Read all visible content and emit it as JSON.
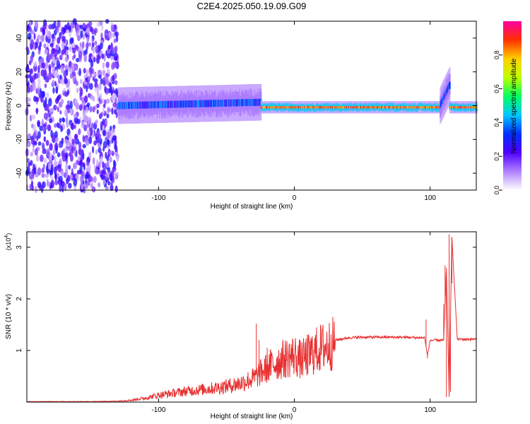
{
  "title": "C2E4.2025.050.19.09.G09",
  "spectrogram": {
    "chart_data": {
      "type": "heatmap",
      "xlabel": "Height of straight line (km)",
      "ylabel": "Frequency (Hz)",
      "xlim": [
        -197,
        134
      ],
      "ylim": [
        -50,
        50
      ],
      "x_ticks": [
        -100,
        0,
        100
      ],
      "y_ticks": [
        -40,
        -20,
        0,
        20,
        40
      ],
      "colorbar": {
        "label": "Normalized spectral amplitude",
        "range": [
          0,
          1
        ],
        "ticks": [
          0.0,
          0.2,
          0.4,
          0.6,
          0.8
        ],
        "colors": [
          "#ffffff",
          "#b080ff",
          "#5000ff",
          "#0030ff",
          "#00c8ff",
          "#00ff60",
          "#c0ff00",
          "#ffd000",
          "#ff3000",
          "#ff00a0"
        ]
      },
      "regions": [
        {
          "x_range": [
            -197,
            -130
          ],
          "freq_range": [
            -50,
            50
          ],
          "amplitude_range": [
            0.05,
            0.3
          ]
        },
        {
          "x_range": [
            -130,
            -25
          ],
          "center_freq": [
            0,
            2
          ],
          "half_width": 6,
          "amplitude_range": [
            0.2,
            0.45
          ]
        },
        {
          "x_range": [
            -25,
            107
          ],
          "center_freq": [
            -1,
            -1
          ],
          "half_width": 2,
          "amplitude_range": [
            0.75,
            0.95
          ]
        },
        {
          "x_range": [
            107,
            114
          ],
          "center_freq": [
            0,
            12
          ],
          "half_width": 6,
          "amplitude_range": [
            0.2,
            0.4
          ]
        },
        {
          "x_range": [
            114,
            134
          ],
          "center_freq": [
            -1,
            -1
          ],
          "half_width": 2,
          "amplitude_range": [
            0.75,
            0.95
          ]
        }
      ]
    }
  },
  "snr": {
    "chart_data": {
      "type": "line",
      "xlabel": "Height of straight line (km)",
      "ylabel": "SNR (10 * v/v)",
      "y_scale_label": "(x10",
      "y_scale_exp": "4",
      "y_scale_close": ")",
      "xlim": [
        -197,
        134
      ],
      "ylim": [
        0,
        3.3
      ],
      "x_ticks": [
        -100,
        0,
        100
      ],
      "y_ticks": [
        1,
        2,
        3
      ],
      "color": "#e83030",
      "series": [
        {
          "x": [
            -197,
            -150,
            -130,
            -120,
            -110,
            -100,
            -90,
            -80,
            -70,
            -60,
            -50,
            -40,
            -30,
            -20,
            -10,
            0,
            5,
            10,
            20,
            30,
            40,
            50,
            60,
            70,
            80,
            90,
            96,
            98,
            100,
            110,
            112,
            114,
            116,
            120,
            134
          ],
          "values": [
            0.01,
            0.01,
            0.02,
            0.04,
            0.08,
            0.14,
            0.18,
            0.22,
            0.25,
            0.28,
            0.32,
            0.38,
            0.48,
            0.7,
            0.85,
            0.95,
            0.85,
            0.95,
            1.1,
            1.2,
            1.25,
            1.26,
            1.26,
            1.26,
            1.26,
            1.25,
            1.25,
            0.9,
            1.2,
            1.2,
            2.6,
            0.1,
            3.2,
            1.22,
            1.22
          ]
        }
      ],
      "spikes": [
        {
          "x": -28,
          "y": 1.52
        },
        {
          "x": -26,
          "y": 1.2
        },
        {
          "x": -20,
          "y": 1.05
        },
        {
          "x": 10,
          "y": 0.55
        },
        {
          "x": 97,
          "y": 1.6
        },
        {
          "x": 98,
          "y": 0.85
        },
        {
          "x": 110,
          "y": 1.9
        },
        {
          "x": 111,
          "y": 2.65
        },
        {
          "x": 112,
          "y": 0.1
        },
        {
          "x": 114,
          "y": 3.25
        },
        {
          "x": 115,
          "y": 0.2
        },
        {
          "x": 116,
          "y": 2.3
        }
      ]
    }
  }
}
